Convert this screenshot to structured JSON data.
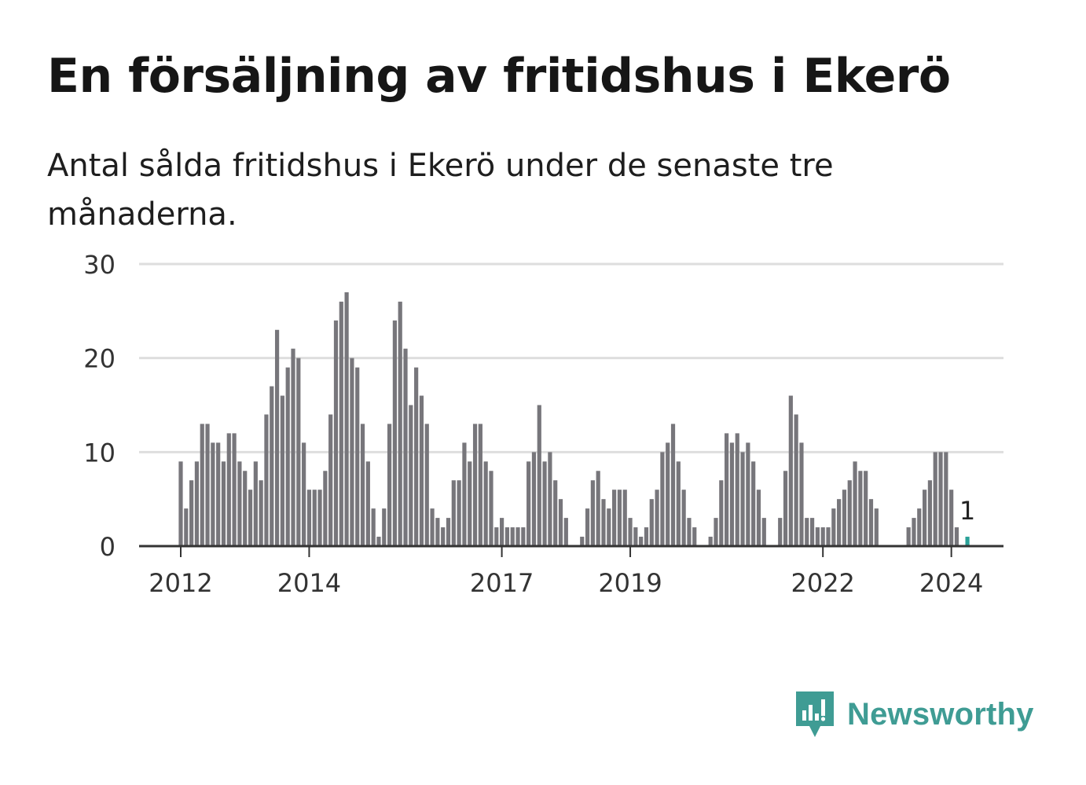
{
  "title": "En försäljning av fritidshus i Ekerö",
  "subtitle": "Antal sålda fritidshus i Ekerö under de senaste tre månaderna.",
  "brand": {
    "name": "Newsworthy",
    "icon": "newsworthy-logo-icon",
    "color": "#3f9c94"
  },
  "chart_data": {
    "type": "bar",
    "title": "En försäljning av fritidshus i Ekerö",
    "subtitle": "Antal sålda fritidshus i Ekerö under de senaste tre månaderna.",
    "start": "2012-01",
    "frequency": "monthly",
    "values": [
      9,
      4,
      7,
      9,
      13,
      13,
      11,
      11,
      9,
      12,
      12,
      9,
      8,
      6,
      9,
      7,
      14,
      17,
      23,
      16,
      19,
      21,
      20,
      11,
      6,
      6,
      6,
      8,
      14,
      24,
      26,
      27,
      20,
      19,
      13,
      9,
      4,
      1,
      4,
      13,
      24,
      26,
      21,
      15,
      19,
      16,
      13,
      4,
      3,
      2,
      3,
      7,
      7,
      11,
      9,
      13,
      13,
      9,
      8,
      2,
      3,
      2,
      2,
      2,
      2,
      9,
      10,
      15,
      9,
      10,
      7,
      5,
      3,
      0,
      0,
      1,
      4,
      7,
      8,
      5,
      4,
      6,
      6,
      6,
      3,
      2,
      1,
      2,
      5,
      6,
      10,
      11,
      13,
      9,
      6,
      3,
      2,
      0,
      0,
      1,
      3,
      7,
      12,
      11,
      12,
      10,
      11,
      9,
      6,
      3,
      0,
      0,
      3,
      8,
      16,
      14,
      11,
      3,
      3,
      2,
      2,
      2,
      4,
      5,
      6,
      7,
      9,
      8,
      8,
      5,
      4,
      0,
      0,
      0,
      0,
      0,
      2,
      3,
      4,
      6,
      7,
      10,
      10,
      10,
      6,
      2,
      0,
      1
    ],
    "highlight_last": true,
    "highlight_label": "1",
    "x_ticks": [
      "2012",
      "2014",
      "2017",
      "2019",
      "2022",
      "2024"
    ],
    "y_ticks": [
      0,
      10,
      20,
      30
    ],
    "ylim": [
      0,
      30
    ],
    "xlabel": "",
    "ylabel": "",
    "grid": true,
    "colors": {
      "bar": "#77767b",
      "highlight": "#2aa198",
      "grid": "#dedede",
      "axis": "#333333"
    }
  }
}
